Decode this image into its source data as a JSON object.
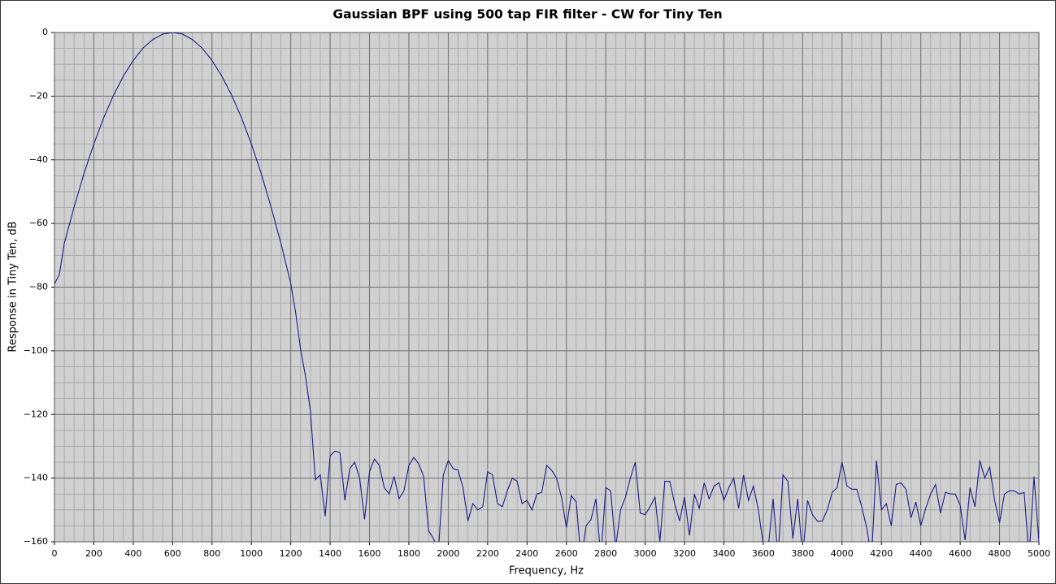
{
  "chart_data": {
    "type": "line",
    "title": "Gaussian BPF using 500 tap FIR filter - CW for Tiny Ten",
    "xlabel": "Frequency, Hz",
    "ylabel": "Response in Tiny Ten, dB",
    "xlim": [
      0,
      5000
    ],
    "ylim": [
      -160,
      0
    ],
    "xticks": [
      0,
      200,
      400,
      600,
      800,
      1000,
      1200,
      1400,
      1600,
      1800,
      2000,
      2200,
      2400,
      2600,
      2800,
      3000,
      3200,
      3400,
      3600,
      3800,
      4000,
      4200,
      4400,
      4600,
      4800,
      5000
    ],
    "yticks": [
      0,
      {
        "value": -20,
        "label": "−20"
      },
      {
        "value": -40,
        "label": "−40"
      },
      {
        "value": -60,
        "label": "−60"
      },
      {
        "value": -80,
        "label": "−80"
      },
      {
        "value": -100,
        "label": "−100"
      },
      {
        "value": -120,
        "label": "−120"
      },
      {
        "value": -140,
        "label": "−140"
      },
      {
        "value": -160,
        "label": "−160"
      }
    ],
    "grid": true,
    "series": [
      {
        "color": "#1c1c8a",
        "x": [
          0,
          25,
          50,
          100,
          150,
          200,
          250,
          300,
          350,
          400,
          450,
          500,
          550,
          600,
          650,
          700,
          750,
          800,
          850,
          900,
          950,
          1000,
          1050,
          1100,
          1150,
          1200,
          1225,
          1250,
          1275,
          1300,
          1325,
          1350,
          1375,
          1400,
          1425,
          1450,
          1475,
          1500,
          1525,
          1550,
          1575,
          1600,
          1625,
          1650,
          1675,
          1700,
          1725,
          1750,
          1775,
          1800,
          1825,
          1850,
          1875,
          1900,
          1925,
          1950,
          1975,
          2000,
          2025,
          2050,
          2075,
          2100,
          2125,
          2150,
          2175,
          2200,
          2225,
          2250,
          2275,
          2300,
          2325,
          2350,
          2375,
          2400,
          2425,
          2450,
          2475,
          2500,
          2525,
          2550,
          2575,
          2600,
          2625,
          2650,
          2675,
          2700,
          2725,
          2750,
          2775,
          2800,
          2825,
          2850,
          2875,
          2900,
          2925,
          2950,
          2975,
          3000,
          3025,
          3050,
          3075,
          3100,
          3125,
          3150,
          3175,
          3200,
          3225,
          3250,
          3275,
          3300,
          3325,
          3350,
          3375,
          3400,
          3425,
          3450,
          3475,
          3500,
          3525,
          3550,
          3575,
          3600,
          3625,
          3650,
          3675,
          3700,
          3725,
          3750,
          3775,
          3800,
          3825,
          3850,
          3875,
          3900,
          3925,
          3950,
          3975,
          4000,
          4025,
          4050,
          4075,
          4100,
          4125,
          4150,
          4175,
          4200,
          4225,
          4250,
          4275,
          4300,
          4325,
          4350,
          4375,
          4400,
          4425,
          4450,
          4475,
          4500,
          4525,
          4550,
          4575,
          4600,
          4625,
          4650,
          4675,
          4700,
          4725,
          4750,
          4775,
          4800,
          4825,
          4850,
          4875,
          4900,
          4925,
          4950,
          4975,
          5000
        ],
        "values": [
          -79,
          -76,
          -66.2,
          -54.8,
          -44.3,
          -35,
          -26.8,
          -19.7,
          -13.7,
          -8.8,
          -4.9,
          -2.2,
          -0.5,
          0,
          -0.5,
          -2.2,
          -4.9,
          -8.8,
          -13.7,
          -19.7,
          -26.8,
          -35,
          -44.3,
          -54.8,
          -66.2,
          -78.8,
          -88,
          -99.5,
          -108,
          -119,
          -140.5,
          -139,
          -152,
          -133,
          -131.5,
          -132,
          -147,
          -137,
          -135,
          -140,
          -153,
          -138,
          -134,
          -136,
          -143,
          -145,
          -139.5,
          -146.5,
          -144,
          -136,
          -133.5,
          -135.5,
          -139.5,
          -156.5,
          -159,
          -163,
          -139,
          -134.5,
          -137,
          -137.5,
          -143,
          -153.5,
          -148,
          -150,
          -149,
          -138,
          -139,
          -148,
          -149,
          -144,
          -140,
          -141,
          -148,
          -147,
          -150,
          -145,
          -144.5,
          -136,
          -137.5,
          -140,
          -146,
          -155.5,
          -145.5,
          -147.5,
          -166,
          -155,
          -153,
          -146.5,
          -165,
          -143,
          -144,
          -162,
          -150,
          -146,
          -140,
          -135,
          -151,
          -151.5,
          -149,
          -146,
          -160,
          -141,
          -141,
          -148,
          -153.5,
          -146,
          -158,
          -145,
          -149.5,
          -141.5,
          -146.5,
          -142.5,
          -141.5,
          -147,
          -143,
          -140,
          -149.5,
          -139,
          -147,
          -142.5,
          -150,
          -161,
          -162,
          -146.5,
          -165,
          -139,
          -141,
          -159,
          -146.5,
          -165,
          -147,
          -151.5,
          -153.5,
          -153.5,
          -150,
          -144.5,
          -143,
          -135,
          -142.5,
          -143.5,
          -143.5,
          -149,
          -155.5,
          -165,
          -134.5,
          -150,
          -148,
          -155,
          -142,
          -141.5,
          -143.5,
          -152.5,
          -147.5,
          -155,
          -149.5,
          -145,
          -142,
          -151,
          -144.5,
          -145,
          -145,
          -148.5,
          -159.5,
          -143,
          -149,
          -134.5,
          -140,
          -136.5,
          -147,
          -154,
          -145,
          -144,
          -144,
          -145,
          -144.5,
          -165,
          -139.5,
          -160
        ]
      }
    ]
  }
}
